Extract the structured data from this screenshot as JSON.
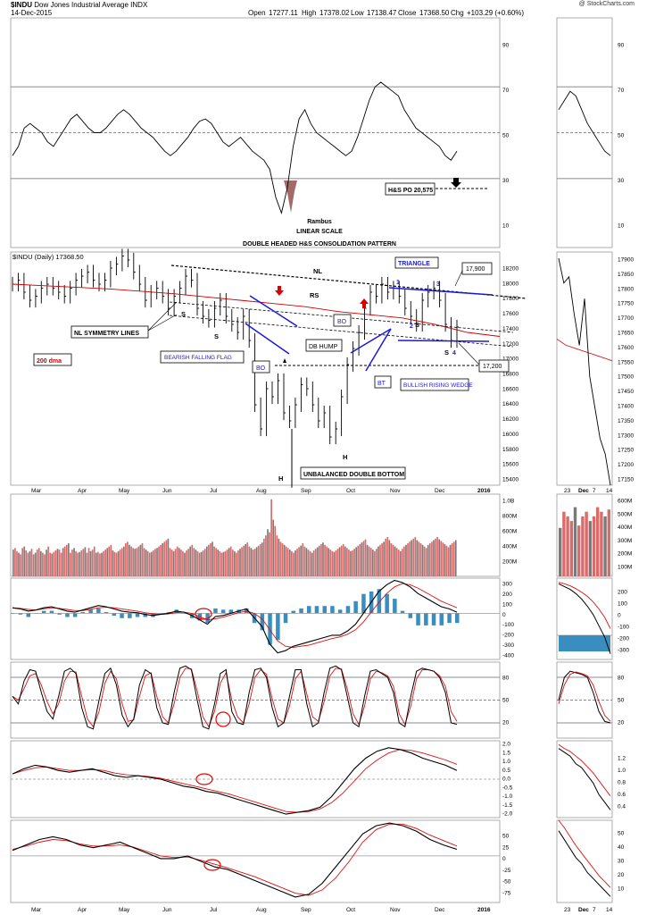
{
  "header": {
    "symbol": "$INDU",
    "name": "Dow Jones Industrial Average INDX",
    "date": "14-Dec-2015",
    "open_label": "Open",
    "open": "17277.11",
    "high_label": "High",
    "high": "17378.02",
    "low_label": "Low",
    "low": "17138.47",
    "close_label": "Close",
    "close": "17368.50",
    "chg_label": "Chg",
    "chg": "+103.29 (+0.60%)",
    "watermark": "@ StockCharts.com"
  },
  "colors": {
    "price_bar": "#000000",
    "ma200": "#cc0000",
    "annotation_blue": "#1a1adc",
    "volume_up": "#d96b6b",
    "volume_down": "#7a7a7a",
    "histogram": "#3a8dbf",
    "signal": "#e01010",
    "rsi_fill": "#a36a6a"
  },
  "chart_data": [
    {
      "type": "line",
      "name": "rsi-panel",
      "scale": "linear",
      "ylim": [
        0,
        100
      ],
      "yticks": [
        "90",
        "70",
        "50",
        "30",
        "10"
      ],
      "right_yticks": [
        "90",
        "70",
        "50",
        "30",
        "10"
      ],
      "reference_lines": [
        70,
        50,
        30
      ],
      "series": [
        {
          "values": [
            40,
            44,
            52,
            54,
            52,
            50,
            46,
            44,
            48,
            52,
            56,
            58,
            55,
            52,
            50,
            50,
            52,
            55,
            58,
            60,
            58,
            55,
            52,
            50,
            48,
            45,
            42,
            40,
            42,
            45,
            48,
            52,
            55,
            56,
            54,
            50,
            46,
            44,
            46,
            48,
            45,
            42,
            40,
            38,
            34,
            22,
            15,
            26,
            44,
            56,
            60,
            54,
            50,
            48,
            46,
            44,
            42,
            40,
            42,
            48,
            56,
            64,
            70,
            72,
            70,
            68,
            66,
            60,
            56,
            52,
            50,
            48,
            46,
            44,
            40,
            38,
            42
          ]
        }
      ],
      "annotations": [
        "H&S PO 20,575"
      ],
      "notes": [
        "Rambus",
        "LINEAR SCALE",
        "DOUBLE HEADED H&S CONSOLIDATION PATTERN"
      ]
    },
    {
      "type": "ohlc",
      "name": "price-panel",
      "title": "$INDU (Daily) 17368.50",
      "ylim": [
        15400,
        18300
      ],
      "yticks": [
        "18200",
        "18000",
        "17800",
        "17600",
        "17400",
        "17200",
        "17000",
        "16800",
        "16600",
        "16400",
        "16200",
        "16000",
        "15800",
        "15600",
        "15400"
      ],
      "right_yticks": [
        "17900",
        "17850",
        "17800",
        "17750",
        "17700",
        "17650",
        "17600",
        "17550",
        "17500",
        "17450",
        "17400",
        "17350",
        "17300",
        "17250",
        "17200",
        "17150"
      ],
      "x_labels": [
        "Mar",
        "Apr",
        "May",
        "Jun",
        "Jul",
        "Aug",
        "Sep",
        "Oct",
        "Nov",
        "Dec",
        "2016"
      ],
      "right_x_labels": [
        "23",
        "Dec",
        "7",
        "14"
      ],
      "close": [
        17900,
        17950,
        17800,
        17700,
        17750,
        17850,
        17900,
        17850,
        17800,
        17750,
        17850,
        17950,
        18000,
        18050,
        17950,
        17900,
        17950,
        18100,
        18150,
        18250,
        18200,
        18050,
        17900,
        17700,
        17800,
        17850,
        17750,
        17600,
        17750,
        17850,
        18000,
        17950,
        17600,
        17500,
        17450,
        17600,
        17700,
        17500,
        17400,
        17300,
        17500,
        17200,
        16400,
        16100,
        16600,
        16500,
        16700,
        16300,
        16200,
        16400,
        16650,
        16600,
        16400,
        16200,
        16300,
        16000,
        16100,
        16500,
        16900,
        17100,
        17300,
        17600,
        17800,
        17750,
        17900,
        17800,
        17850,
        17750,
        17600,
        17500,
        17400,
        17700,
        17800,
        17850,
        17700,
        17400,
        17200,
        17368
      ],
      "ma200": [
        17900,
        17880,
        17860,
        17840,
        17810,
        17780,
        17740,
        17700,
        17660,
        17620,
        17560,
        17520,
        17480,
        17400,
        17300,
        17250
      ],
      "series": [
        {
          "name": "200 dma"
        }
      ],
      "annotations": {
        "nl": "NL",
        "rs": "RS",
        "s": "S",
        "h": "H",
        "triangle": "TRIANGLE",
        "label_17900": "17,900",
        "label_17200": "17,200",
        "symmetry": "NL SYMMETRY LINES",
        "ma": "200 dma",
        "bearish_flag": "BEARISH FALLING FLAG",
        "bo": "BO",
        "bt": "BT",
        "db_hump": "DB HUMP",
        "rising_wedge": "BULLISH RISING WEDGE",
        "double_bottom": "UNBALANCED DOUBLE BOTTOM",
        "n1": "1",
        "n2": "2",
        "n3": "3",
        "n4": "4"
      }
    },
    {
      "type": "bar",
      "name": "volume-panel",
      "yticks": [
        "1.0B",
        "800M",
        "600M",
        "400M",
        "200M"
      ],
      "right_yticks": [
        "600M",
        "500M",
        "400M",
        "300M",
        "200M",
        "100M"
      ],
      "values": [
        340,
        360,
        320,
        300,
        280,
        360,
        380,
        330,
        300,
        320,
        350,
        280,
        300,
        340,
        360,
        320,
        300,
        280,
        340,
        380,
        300,
        290,
        310,
        330,
        350,
        340,
        300,
        360,
        380,
        400,
        420,
        300,
        340,
        360,
        320,
        300,
        310,
        330,
        350,
        370,
        300,
        360,
        320,
        340,
        380,
        300,
        310,
        290,
        300,
        320,
        340,
        360,
        380,
        400,
        330,
        310,
        300,
        320,
        340,
        360,
        380,
        420,
        440,
        400,
        380,
        360,
        350,
        360,
        380,
        400,
        420,
        360,
        340,
        320,
        300,
        310,
        330,
        350,
        360,
        380,
        400,
        420,
        440,
        460,
        480,
        360,
        340,
        320,
        350,
        380,
        360,
        340,
        320,
        300,
        330,
        350,
        380,
        400,
        360,
        340,
        320,
        300,
        310,
        330,
        350,
        380,
        400,
        420,
        440,
        380,
        360,
        340,
        320,
        300,
        310,
        320,
        340,
        360,
        380,
        340,
        320,
        300,
        330,
        350,
        370,
        390,
        410,
        430,
        380,
        360,
        340,
        350,
        370,
        390,
        410,
        430,
        480,
        520,
        600,
        560,
        980,
        720,
        640,
        520,
        480,
        440,
        420,
        400,
        380,
        360,
        340,
        320,
        300,
        330,
        350,
        370,
        390,
        420,
        380,
        360,
        340,
        320,
        300,
        330,
        350,
        370,
        390,
        410,
        430,
        400,
        380,
        360,
        340,
        320,
        310,
        330,
        350,
        370,
        390,
        410,
        380,
        360,
        340,
        320,
        330,
        350,
        370,
        390,
        410,
        430,
        450,
        470,
        400,
        380,
        360,
        340,
        320,
        350,
        380,
        400,
        420,
        440,
        480,
        500,
        460,
        420,
        400,
        380,
        360,
        340,
        320,
        350,
        380,
        400,
        420,
        440,
        460,
        480,
        500,
        460,
        440,
        420,
        400,
        380,
        360,
        400,
        420,
        440,
        460,
        480,
        500,
        470,
        450,
        430,
        410,
        390,
        370,
        400,
        420,
        440,
        460
      ]
    },
    {
      "type": "line",
      "name": "macd-panel",
      "yticks": [
        "300",
        "200",
        "100",
        "0",
        "-100",
        "-200",
        "-300",
        "-400"
      ],
      "right_yticks": [
        "200",
        "100",
        "0",
        "-100",
        "-200",
        "-300"
      ],
      "series": [
        {
          "values": [
            50,
            40,
            20,
            30,
            50,
            60,
            40,
            20,
            10,
            30,
            50,
            70,
            60,
            40,
            20,
            10,
            5,
            -10,
            -20,
            -10,
            0,
            20,
            10,
            -20,
            -60,
            -100,
            -30,
            -20,
            0,
            20,
            40,
            -40,
            -120,
            -280,
            -360,
            -340,
            -300,
            -280,
            -260,
            -240,
            -220,
            -200,
            -200,
            -160,
            -100,
            0,
            100,
            200,
            260,
            300,
            280,
            240,
            180,
            140,
            100,
            60,
            40,
            10
          ]
        },
        {
          "values": [
            50,
            45,
            35,
            30,
            40,
            50,
            45,
            35,
            25,
            25,
            35,
            50,
            55,
            50,
            40,
            30,
            20,
            5,
            -5,
            -10,
            -5,
            5,
            10,
            0,
            -30,
            -60,
            -50,
            -35,
            -15,
            5,
            20,
            0,
            -50,
            -150,
            -250,
            -300,
            -310,
            -300,
            -290,
            -270,
            -250,
            -230,
            -215,
            -190,
            -150,
            -80,
            10,
            100,
            180,
            240,
            270,
            260,
            230,
            190,
            150,
            110,
            80,
            50
          ]
        }
      ]
    },
    {
      "type": "line",
      "name": "stochastic-panel",
      "yticks": [
        "80",
        "50",
        "20"
      ],
      "right_yticks": [
        "80",
        "50",
        "20"
      ],
      "reference_lines": [
        80,
        50,
        20
      ],
      "series": [
        {
          "values": [
            55,
            45,
            75,
            90,
            88,
            60,
            35,
            25,
            55,
            88,
            92,
            85,
            40,
            15,
            12,
            50,
            85,
            92,
            70,
            30,
            15,
            25,
            70,
            90,
            85,
            40,
            20,
            18,
            60,
            92,
            95,
            90,
            50,
            15,
            12,
            45,
            85,
            90,
            35,
            20,
            18,
            60,
            90,
            92,
            80,
            40,
            15,
            20,
            55,
            90,
            90,
            45,
            15,
            20,
            60,
            92,
            95,
            90,
            55,
            20,
            15,
            55,
            88,
            90,
            85,
            80,
            60,
            20,
            15,
            55,
            88,
            92,
            90,
            88,
            80,
            60,
            20,
            18
          ]
        },
        {
          "values": [
            55,
            50,
            65,
            82,
            85,
            70,
            48,
            32,
            45,
            75,
            88,
            87,
            55,
            25,
            15,
            35,
            72,
            88,
            78,
            45,
            22,
            24,
            55,
            82,
            86,
            55,
            28,
            20,
            45,
            80,
            92,
            91,
            62,
            28,
            15,
            35,
            72,
            86,
            50,
            28,
            20,
            45,
            80,
            90,
            84,
            52,
            25,
            20,
            42,
            78,
            88,
            58,
            28,
            22,
            48,
            82,
            92,
            91,
            65,
            32,
            18,
            42,
            78,
            88,
            86,
            82,
            68,
            32,
            18,
            42,
            78,
            90,
            90,
            88,
            82,
            68,
            35,
            22
          ]
        }
      ]
    },
    {
      "type": "line",
      "name": "ppo-panel",
      "yticks": [
        "2.0",
        "1.5",
        "1.0",
        "0.5",
        "0.0",
        "-0.5",
        "-1.0",
        "-1.5",
        "-2.0"
      ],
      "right_yticks": [
        "1.2",
        "1.0",
        "0.8",
        "0.6",
        "0.4"
      ],
      "series": [
        {
          "values": [
            0.3,
            0.6,
            0.8,
            0.7,
            0.5,
            0.4,
            0.5,
            0.6,
            0.4,
            0.2,
            0.1,
            0.2,
            0.1,
            0.0,
            -0.2,
            -0.4,
            -0.5,
            -0.7,
            -0.8,
            -1.0,
            -1.2,
            -1.4,
            -1.6,
            -1.8,
            -2.0,
            -1.9,
            -1.8,
            -1.6,
            -1.0,
            -0.2,
            0.6,
            1.2,
            1.6,
            1.8,
            1.7,
            1.5,
            1.2,
            1.0,
            0.8,
            0.5
          ]
        },
        {
          "values": [
            0.3,
            0.5,
            0.65,
            0.7,
            0.6,
            0.5,
            0.5,
            0.55,
            0.5,
            0.35,
            0.25,
            0.2,
            0.15,
            0.05,
            -0.1,
            -0.25,
            -0.4,
            -0.55,
            -0.7,
            -0.85,
            -1.05,
            -1.25,
            -1.45,
            -1.65,
            -1.85,
            -1.9,
            -1.85,
            -1.7,
            -1.35,
            -0.8,
            -0.1,
            0.6,
            1.1,
            1.5,
            1.7,
            1.65,
            1.5,
            1.3,
            1.1,
            0.85
          ]
        }
      ]
    },
    {
      "type": "line",
      "name": "momentum-panel",
      "yticks": [
        "50",
        "25",
        "0",
        "-25",
        "-50",
        "-75"
      ],
      "right_yticks": [
        "50",
        "40",
        "30",
        "20",
        "10"
      ],
      "x_labels": [
        "Mar",
        "Apr",
        "May",
        "Jun",
        "Jul",
        "Aug",
        "Sep",
        "Oct",
        "Nov",
        "Dec",
        "2016"
      ],
      "right_x_labels": [
        "23",
        "Dec",
        "7",
        "14"
      ],
      "series": [
        {
          "values": [
            10,
            20,
            30,
            35,
            30,
            20,
            15,
            20,
            25,
            15,
            5,
            -5,
            -5,
            0,
            -10,
            -20,
            -25,
            -35,
            -45,
            -55,
            -65,
            -75,
            -70,
            -50,
            -20,
            10,
            40,
            55,
            60,
            55,
            45,
            30,
            20,
            12
          ]
        },
        {
          "values": [
            12,
            18,
            25,
            30,
            28,
            22,
            18,
            18,
            20,
            16,
            8,
            0,
            -3,
            -2,
            -8,
            -15,
            -22,
            -30,
            -38,
            -48,
            -58,
            -68,
            -72,
            -62,
            -40,
            -10,
            25,
            48,
            58,
            58,
            50,
            38,
            28,
            18
          ]
        }
      ]
    }
  ]
}
